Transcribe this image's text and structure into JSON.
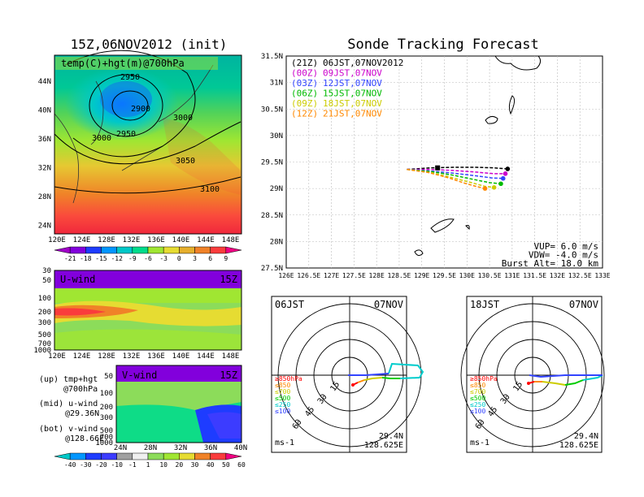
{
  "main_title": "Sonde Tracking Forecast",
  "left": {
    "top_title": "15Z,06NOV2012 (init)",
    "top_label": "temp(C)+hgt(m)@700hPa",
    "top_lat_ticks": [
      "44N",
      "40N",
      "36N",
      "32N",
      "28N",
      "24N"
    ],
    "lon_ticks": [
      "120E",
      "124E",
      "128E",
      "132E",
      "136E",
      "140E",
      "144E",
      "148E"
    ],
    "contour_labels": [
      "2950",
      "2900",
      "2950",
      "3000",
      "3000",
      "3050",
      "3100"
    ],
    "temp_colorbar": [
      "-21",
      "-18",
      "-15",
      "-12",
      "-9",
      "-6",
      "-3",
      "0",
      "3",
      "6",
      "9"
    ],
    "u_panel_label": "U-wind",
    "u_panel_time": "15Z",
    "u_pressure_ticks": [
      "30",
      "50",
      "100",
      "200",
      "300",
      "500",
      "700",
      "1000"
    ],
    "v_panel_label": "V-wind",
    "v_panel_time": "15Z",
    "v_pressure_ticks": [
      "50",
      "100",
      "200",
      "300",
      "500",
      "700",
      "1000"
    ],
    "v_lat_ticks": [
      "24N",
      "28N",
      "32N",
      "36N",
      "40N"
    ],
    "wind_colorbar": [
      "-40",
      "-30",
      "-20",
      "-10",
      "-1",
      "1",
      "10",
      "20",
      "30",
      "40",
      "50",
      "60"
    ],
    "notes": [
      "(up) tmp+hgt",
      "@700hPa",
      "(mid) u-wind",
      "@29.36N",
      "(bot) v-wind",
      "@128.66E"
    ]
  },
  "legend": [
    {
      "code": "(21Z)",
      "text": "06JST,07NOV2012",
      "color": "#000000"
    },
    {
      "code": "(00Z)",
      "text": "09JST,07NOV",
      "color": "#cc00cc"
    },
    {
      "code": "(03Z)",
      "text": "12JST,07NOV",
      "color": "#3344ff"
    },
    {
      "code": "(06Z)",
      "text": "15JST,07NOV",
      "color": "#00bb00"
    },
    {
      "code": "(09Z)",
      "text": "18JST,07NOV",
      "color": "#cccc00"
    },
    {
      "code": "(12Z)",
      "text": "21JST,07NOV",
      "color": "#ff8800"
    }
  ],
  "track_map": {
    "lat_ticks": [
      "31.5N",
      "31N",
      "30.5N",
      "30N",
      "29.5N",
      "29N",
      "28.5N",
      "28N",
      "27.5N"
    ],
    "lon_ticks": [
      "126E",
      "126.5E",
      "127E",
      "127.5E",
      "128E",
      "128.5E",
      "129E",
      "129.5E",
      "130E",
      "130.5E",
      "131E",
      "131.5E",
      "132E",
      "132.5E",
      "133E"
    ],
    "params": [
      "VUP= 6.0 m/s",
      "VDW= -4.0 m/s",
      "Burst Alt= 18.0 km"
    ]
  },
  "hodographs": [
    {
      "time": "06JST",
      "date": "07NOV",
      "lat": "29.4N",
      "lon": "128.625E",
      "unit": "ms-1"
    },
    {
      "time": "18JST",
      "date": "07NOV",
      "lat": "29.4N",
      "lon": "128.625E",
      "unit": "ms-1"
    }
  ],
  "hodo_ring_labels": [
    "15",
    "30",
    "45",
    "60"
  ],
  "hodo_legend": [
    {
      "text": "≥850hPa",
      "color": "#ff0000"
    },
    {
      "text": "≤850",
      "color": "#ff8800"
    },
    {
      "text": "≤700",
      "color": "#cccc00"
    },
    {
      "text": "≤500",
      "color": "#00cc00"
    },
    {
      "text": "≤250",
      "color": "#00cccc"
    },
    {
      "text": "≤100",
      "color": "#3344ff"
    }
  ],
  "colors": {
    "temp": [
      "#a000c8",
      "#8200dc",
      "#1e3cff",
      "#0096ff",
      "#00c8c8",
      "#00dc8c",
      "#a0e632",
      "#e6dc32",
      "#e6af2d",
      "#f08228",
      "#fa3c3c",
      "#f00082"
    ],
    "wind": [
      "#00c8c8",
      "#0096ff",
      "#1e3cff",
      "#3c3cff",
      "#a0a0a0",
      "#f0f0f0",
      "#8cdc5a",
      "#a0e632",
      "#e6dc32",
      "#f08228",
      "#fa3c3c",
      "#f00082"
    ]
  },
  "chart_data": [
    {
      "type": "line",
      "title": "Sonde Tracking Forecast",
      "xlim": [
        126,
        133
      ],
      "ylim": [
        27.5,
        31.5
      ],
      "series": [
        {
          "name": "06JST,07NOV2012",
          "x": [
            128.67,
            129.2,
            129.7,
            130.2,
            130.6,
            130.9
          ],
          "y": [
            29.36,
            29.39,
            29.4,
            29.4,
            29.39,
            29.37
          ]
        },
        {
          "name": "09JST,07NOV",
          "x": [
            128.67,
            129.2,
            129.7,
            130.2,
            130.6,
            130.85
          ],
          "y": [
            29.36,
            29.36,
            29.34,
            29.31,
            29.28,
            29.28
          ]
        },
        {
          "name": "12JST,07NOV",
          "x": [
            128.67,
            129.2,
            129.7,
            130.2,
            130.55,
            130.8
          ],
          "y": [
            29.36,
            29.33,
            29.29,
            29.24,
            29.2,
            29.19
          ]
        },
        {
          "name": "15JST,07NOV",
          "x": [
            128.67,
            129.2,
            129.7,
            130.15,
            130.5,
            130.75
          ],
          "y": [
            29.36,
            29.32,
            29.25,
            29.17,
            29.11,
            29.09
          ]
        },
        {
          "name": "18JST,07NOV",
          "x": [
            128.67,
            129.2,
            129.65,
            130.1,
            130.4,
            130.6
          ],
          "y": [
            29.36,
            29.3,
            29.21,
            29.11,
            29.04,
            29.02
          ]
        },
        {
          "name": "21JST,07NOV",
          "x": [
            128.67,
            129.15,
            129.6,
            129.95,
            130.2,
            130.4
          ],
          "y": [
            29.36,
            29.3,
            29.2,
            29.1,
            29.04,
            29.0
          ]
        }
      ]
    }
  ]
}
